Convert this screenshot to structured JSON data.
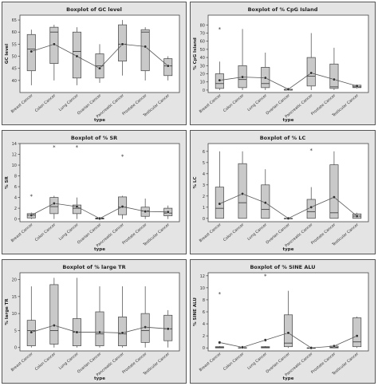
{
  "figure": {
    "colors": {
      "panel_background": "#e4e4e4",
      "plot_background": "#ffffff",
      "box_fill": "#c9c9c9",
      "stroke": "#444444",
      "mean_line": "#555555"
    }
  },
  "chart_data": [
    {
      "type": "box",
      "title": "Boxplot of GC level",
      "xlabel": "type",
      "ylabel": "GC level",
      "ylim": [
        35,
        67
      ],
      "yticks": [
        40,
        45,
        50,
        55,
        60,
        65
      ],
      "categories": [
        "Breast Cancer",
        "Colon Cancer",
        "Lung Cancer",
        "Ovarian Cancer",
        "Pancreatic Cancer",
        "Prostate Cancer",
        "Testicular Cancer"
      ],
      "boxes": [
        {
          "min": 38,
          "q1": 44,
          "median": 53,
          "q3": 59,
          "max": 61
        },
        {
          "min": 40,
          "q1": 47,
          "median": 60,
          "q3": 62,
          "max": 63
        },
        {
          "min": 38,
          "q1": 41,
          "median": 52,
          "q3": 60,
          "max": 62
        },
        {
          "min": 39,
          "q1": 41,
          "median": 46,
          "q3": 51,
          "max": 55
        },
        {
          "min": 42,
          "q1": 48,
          "median": 55,
          "q3": 63,
          "max": 65
        },
        {
          "min": 40,
          "q1": 44,
          "median": 60,
          "q3": 61,
          "max": 62
        },
        {
          "min": 40,
          "q1": 42,
          "median": 46,
          "q3": 49,
          "max": 50
        }
      ],
      "means": [
        52,
        55,
        50,
        45,
        55,
        54,
        46
      ],
      "outliers": []
    },
    {
      "type": "box",
      "title": "Boxplot of % CpG Island",
      "xlabel": "type",
      "ylabel": "% CpG Island",
      "ylim": [
        -3,
        92
      ],
      "yticks": [
        0,
        10,
        20,
        30,
        40,
        50,
        60,
        70,
        80
      ],
      "categories": [
        "Breast Cancer",
        "Colon Cancer",
        "Lung Cancer",
        "Ovarian Cancer",
        "Pancreatic Cancer",
        "Prostate Cancer",
        "Testicular Cancer"
      ],
      "boxes": [
        {
          "min": 0,
          "q1": 2,
          "median": 8,
          "q3": 20,
          "max": 35
        },
        {
          "min": 0,
          "q1": 3,
          "median": 13,
          "q3": 30,
          "max": 75
        },
        {
          "min": 0,
          "q1": 3,
          "median": 8,
          "q3": 28,
          "max": 46
        },
        {
          "min": 0,
          "q1": 0,
          "median": 0,
          "q3": 1,
          "max": 2
        },
        {
          "min": 0,
          "q1": 5,
          "median": 17,
          "q3": 40,
          "max": 70
        },
        {
          "min": 0,
          "q1": 2,
          "median": 4,
          "q3": 32,
          "max": 52
        },
        {
          "min": 2,
          "q1": 3,
          "median": 4,
          "q3": 6,
          "max": 7
        }
      ],
      "means": [
        12,
        16,
        15,
        1,
        21,
        13,
        5
      ],
      "outliers": [
        {
          "category": 0,
          "value": 75
        }
      ]
    },
    {
      "type": "box",
      "title": "Boxplot of % SR",
      "xlabel": "type",
      "ylabel": "% SR",
      "ylim": [
        -0.5,
        14
      ],
      "yticks": [
        0,
        2,
        4,
        6,
        8,
        10,
        12,
        14
      ],
      "categories": [
        "Breast Cancer",
        "Colon Cancer",
        "Lung Cancer",
        "Ovarian Cancer",
        "Pancreatic Cancer",
        "Prostate Cancer",
        "Testicular Cancer"
      ],
      "boxes": [
        {
          "min": 0,
          "q1": 0.2,
          "median": 0.7,
          "q3": 1.0,
          "max": 1.2
        },
        {
          "min": 0,
          "q1": 1.0,
          "median": 2.3,
          "q3": 4.0,
          "max": 4.3
        },
        {
          "min": 0,
          "q1": 1.0,
          "median": 2.0,
          "q3": 2.6,
          "max": 4.0
        },
        {
          "min": 0,
          "q1": 0,
          "median": 0.1,
          "q3": 0.2,
          "max": 0.3
        },
        {
          "min": 0,
          "q1": 0.8,
          "median": 2.2,
          "q3": 4.1,
          "max": 4.3
        },
        {
          "min": 0,
          "q1": 0.5,
          "median": 1.5,
          "q3": 2.2,
          "max": 3.8
        },
        {
          "min": 0,
          "q1": 0.6,
          "median": 1.1,
          "q3": 2.0,
          "max": 2.5
        }
      ],
      "means": [
        0.7,
        2.9,
        2.3,
        0.1,
        2.3,
        1.4,
        1.3
      ],
      "outliers": [
        {
          "category": 0,
          "value": 4.2
        },
        {
          "category": 1,
          "value": 13.3
        },
        {
          "category": 2,
          "value": 13.3
        },
        {
          "category": 4,
          "value": 11.6
        }
      ]
    },
    {
      "type": "box",
      "title": "Boxplot of % LC",
      "xlabel": "type",
      "ylabel": "% LC",
      "ylim": [
        -0.3,
        6.7
      ],
      "yticks": [
        0,
        1,
        2,
        3,
        4,
        5,
        6
      ],
      "categories": [
        "Breast Cancer",
        "Colon Cancer",
        "Lung Cancer",
        "Ovarian Cancer",
        "Pancreatic Cancer",
        "Prostate Cancer",
        "Testicular Cancer"
      ],
      "boxes": [
        {
          "min": 0,
          "q1": 0,
          "median": 0.9,
          "q3": 2.8,
          "max": 6.0
        },
        {
          "min": 0,
          "q1": 0,
          "median": 1.4,
          "q3": 4.9,
          "max": 6.0
        },
        {
          "min": 0,
          "q1": 0,
          "median": 0.8,
          "q3": 3.0,
          "max": 4.4
        },
        {
          "min": 0,
          "q1": 0,
          "median": 0,
          "q3": 0,
          "max": 0
        },
        {
          "min": 0,
          "q1": 0,
          "median": 0.6,
          "q3": 1.7,
          "max": 2.8
        },
        {
          "min": 0,
          "q1": 0,
          "median": 0.5,
          "q3": 4.8,
          "max": 6.0
        },
        {
          "min": 0,
          "q1": 0,
          "median": 0.2,
          "q3": 0.4,
          "max": 0.5
        }
      ],
      "means": [
        1.3,
        2.2,
        1.4,
        0,
        1.0,
        1.9,
        0.2
      ],
      "outliers": [
        {
          "category": 4,
          "value": 6.1
        }
      ]
    },
    {
      "type": "box",
      "title": "Boxplot of % large TR",
      "xlabel": "type",
      "ylabel": "% large TR",
      "ylim": [
        -1,
        22
      ],
      "yticks": [
        0,
        5,
        10,
        15,
        20
      ],
      "categories": [
        "Breast Cancer",
        "Colon Cancer",
        "Lung Cancer",
        "Ovarian Cancer",
        "Pancreatic Cancer",
        "Prostate Cancer",
        "Testicular Cancer"
      ],
      "boxes": [
        {
          "min": 0,
          "q1": 0.5,
          "median": 5,
          "q3": 8,
          "max": 18
        },
        {
          "min": 0,
          "q1": 1,
          "median": 5,
          "q3": 18.5,
          "max": 20.5
        },
        {
          "min": 0,
          "q1": 0.5,
          "median": 4.5,
          "q3": 8.5,
          "max": 20.5
        },
        {
          "min": 0,
          "q1": 0.5,
          "median": 4,
          "q3": 10.5,
          "max": 18
        },
        {
          "min": 0,
          "q1": 0.5,
          "median": 4,
          "q3": 9,
          "max": 18
        },
        {
          "min": 0,
          "q1": 1.5,
          "median": 5,
          "q3": 10,
          "max": 18
        },
        {
          "min": 0,
          "q1": 2,
          "median": 5.5,
          "q3": 9.5,
          "max": 11
        }
      ],
      "means": [
        4.5,
        6.5,
        4.5,
        4.5,
        4.3,
        6,
        5.5
      ],
      "outliers": []
    },
    {
      "type": "box",
      "title": "Boxplot of % SINE ALU",
      "xlabel": "type",
      "ylabel": "% SINE ALU",
      "ylim": [
        -0.5,
        12.5
      ],
      "yticks": [
        0,
        2,
        4,
        6,
        8,
        10,
        12
      ],
      "categories": [
        "Breast Cancer",
        "Colon Cancer",
        "Lung Cancer",
        "Ovarian Cancer",
        "Pancreatic Cancer",
        "Prostate Cancer",
        "Testicular Cancer"
      ],
      "boxes": [
        {
          "min": 0,
          "q1": 0,
          "median": 0.1,
          "q3": 0.2,
          "max": 0.3
        },
        {
          "min": 0,
          "q1": 0,
          "median": 0,
          "q3": 0.05,
          "max": 0.1
        },
        {
          "min": 0,
          "q1": 0,
          "median": 0.1,
          "q3": 0.2,
          "max": 0.3
        },
        {
          "min": 0,
          "q1": 0.2,
          "median": 0.8,
          "q3": 5.5,
          "max": 9.5
        },
        {
          "min": 0,
          "q1": 0,
          "median": 0,
          "q3": 0,
          "max": 0
        },
        {
          "min": 0,
          "q1": 0,
          "median": 0.1,
          "q3": 0.3,
          "max": 0.5
        },
        {
          "min": 0,
          "q1": 0.2,
          "median": 1.0,
          "q3": 5.0,
          "max": 5.2
        }
      ],
      "means": [
        0.9,
        0.1,
        1.3,
        2.5,
        0,
        0.3,
        2.0
      ],
      "outliers": [
        {
          "category": 0,
          "value": 9.0
        },
        {
          "category": 2,
          "value": 12.0
        }
      ]
    }
  ]
}
